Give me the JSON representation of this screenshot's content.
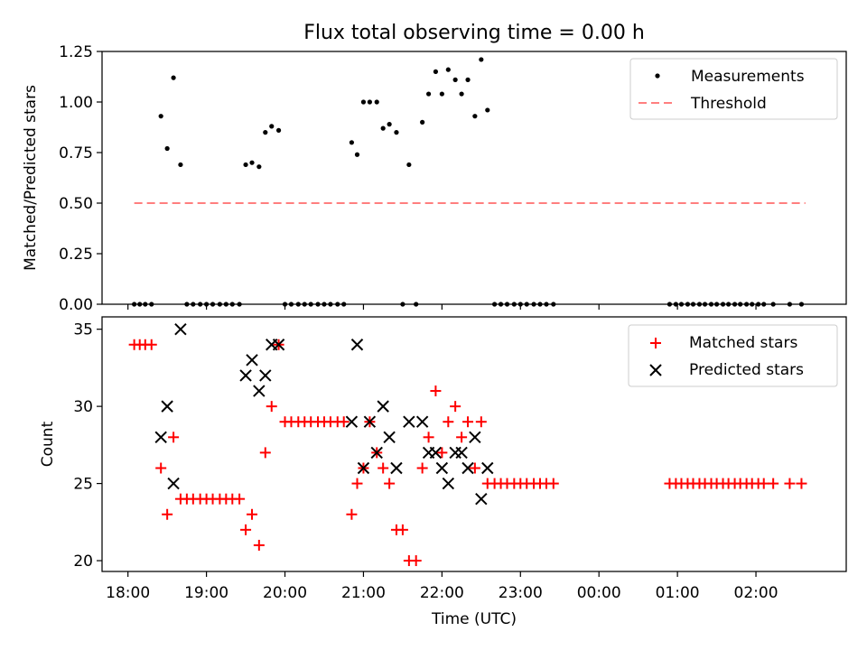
{
  "figure": {
    "title": "Flux total observing time = 0.00 h"
  },
  "colors": {
    "measurement": "#000000",
    "threshold": "#ff7f7f",
    "matched": "#ff0000",
    "predicted": "#000000"
  },
  "chart_data": [
    {
      "type": "scatter",
      "ylabel": "Matched/Predicted stars",
      "xlabel": "",
      "ylim": [
        0,
        1.25
      ],
      "y_ticks": [
        "0.00",
        "0.25",
        "0.50",
        "0.75",
        "1.00",
        "1.25"
      ],
      "x_ticks_visible": false,
      "x_unit": "hours after 18:00 UTC",
      "grid": false,
      "legend": {
        "position": "top-right",
        "entries": [
          "Measurements",
          "Threshold"
        ]
      },
      "threshold": {
        "name": "Threshold",
        "value": 0.5,
        "x_range": [
          0.08,
          8.63
        ]
      },
      "series": [
        {
          "name": "Measurements",
          "marker": "dot",
          "points": [
            [
              0.08,
              0
            ],
            [
              0.15,
              0
            ],
            [
              0.22,
              0
            ],
            [
              0.3,
              0
            ],
            [
              0.42,
              0.93
            ],
            [
              0.5,
              0.77
            ],
            [
              0.58,
              1.12
            ],
            [
              0.67,
              0.69
            ],
            [
              0.75,
              0
            ],
            [
              0.83,
              0
            ],
            [
              0.92,
              0
            ],
            [
              1.0,
              0
            ],
            [
              1.08,
              0
            ],
            [
              1.17,
              0
            ],
            [
              1.25,
              0
            ],
            [
              1.33,
              0
            ],
            [
              1.42,
              0
            ],
            [
              1.5,
              0.69
            ],
            [
              1.58,
              0.7
            ],
            [
              1.67,
              0.68
            ],
            [
              1.75,
              0.85
            ],
            [
              1.83,
              0.88
            ],
            [
              1.92,
              0.86
            ],
            [
              2.0,
              0
            ],
            [
              2.08,
              0
            ],
            [
              2.17,
              0
            ],
            [
              2.25,
              0
            ],
            [
              2.33,
              0
            ],
            [
              2.42,
              0
            ],
            [
              2.5,
              0
            ],
            [
              2.58,
              0
            ],
            [
              2.67,
              0
            ],
            [
              2.75,
              0
            ],
            [
              2.85,
              0.8
            ],
            [
              2.92,
              0.74
            ],
            [
              3.0,
              1.0
            ],
            [
              3.08,
              1.0
            ],
            [
              3.17,
              1.0
            ],
            [
              3.25,
              0.87
            ],
            [
              3.33,
              0.89
            ],
            [
              3.42,
              0.85
            ],
            [
              3.5,
              0
            ],
            [
              3.58,
              0.69
            ],
            [
              3.67,
              0
            ],
            [
              3.75,
              0.9
            ],
            [
              3.83,
              1.04
            ],
            [
              3.92,
              1.15
            ],
            [
              4.0,
              1.04
            ],
            [
              4.08,
              1.16
            ],
            [
              4.17,
              1.11
            ],
            [
              4.25,
              1.04
            ],
            [
              4.33,
              1.11
            ],
            [
              4.42,
              0.93
            ],
            [
              4.5,
              1.21
            ],
            [
              4.58,
              0.96
            ],
            [
              4.67,
              0
            ],
            [
              4.75,
              0
            ],
            [
              4.83,
              0
            ],
            [
              4.92,
              0
            ],
            [
              5.0,
              0
            ],
            [
              5.08,
              0
            ],
            [
              5.17,
              0
            ],
            [
              5.25,
              0
            ],
            [
              5.33,
              0
            ],
            [
              5.42,
              0
            ],
            [
              6.9,
              0
            ],
            [
              6.98,
              0
            ],
            [
              7.05,
              0
            ],
            [
              7.13,
              0
            ],
            [
              7.2,
              0
            ],
            [
              7.28,
              0
            ],
            [
              7.35,
              0
            ],
            [
              7.43,
              0
            ],
            [
              7.5,
              0
            ],
            [
              7.58,
              0
            ],
            [
              7.65,
              0
            ],
            [
              7.73,
              0
            ],
            [
              7.8,
              0
            ],
            [
              7.88,
              0
            ],
            [
              7.95,
              0
            ],
            [
              8.03,
              0
            ],
            [
              8.1,
              0
            ],
            [
              8.22,
              0
            ],
            [
              8.43,
              0
            ],
            [
              8.58,
              0
            ]
          ]
        }
      ]
    },
    {
      "type": "scatter",
      "ylabel": "Count",
      "xlabel": "Time (UTC)",
      "ylim": [
        19.3,
        35.8
      ],
      "y_ticks": [
        20,
        25,
        30,
        35
      ],
      "x_ticks": [
        "18:00",
        "19:00",
        "20:00",
        "21:00",
        "22:00",
        "23:00",
        "00:00",
        "01:00",
        "02:00"
      ],
      "x_tick_positions": [
        0,
        1,
        2,
        3,
        4,
        5,
        6,
        7,
        8
      ],
      "x_unit": "hours after 18:00 UTC",
      "xlim": [
        -0.33,
        9.15
      ],
      "grid": false,
      "legend": {
        "position": "top-right",
        "entries": [
          "Matched stars",
          "Predicted stars"
        ]
      },
      "series": [
        {
          "name": "Matched stars",
          "marker": "plus",
          "points": [
            [
              0.08,
              34
            ],
            [
              0.15,
              34
            ],
            [
              0.22,
              34
            ],
            [
              0.3,
              34
            ],
            [
              0.42,
              26
            ],
            [
              0.5,
              23
            ],
            [
              0.58,
              28
            ],
            [
              0.67,
              24
            ],
            [
              0.75,
              24
            ],
            [
              0.83,
              24
            ],
            [
              0.92,
              24
            ],
            [
              1.0,
              24
            ],
            [
              1.08,
              24
            ],
            [
              1.17,
              24
            ],
            [
              1.25,
              24
            ],
            [
              1.33,
              24
            ],
            [
              1.42,
              24
            ],
            [
              1.5,
              22
            ],
            [
              1.58,
              23
            ],
            [
              1.67,
              21
            ],
            [
              1.75,
              27
            ],
            [
              1.83,
              30
            ],
            [
              1.92,
              34
            ],
            [
              2.0,
              29
            ],
            [
              2.08,
              29
            ],
            [
              2.17,
              29
            ],
            [
              2.25,
              29
            ],
            [
              2.33,
              29
            ],
            [
              2.42,
              29
            ],
            [
              2.5,
              29
            ],
            [
              2.58,
              29
            ],
            [
              2.67,
              29
            ],
            [
              2.75,
              29
            ],
            [
              2.85,
              23
            ],
            [
              2.92,
              25
            ],
            [
              3.0,
              26
            ],
            [
              3.08,
              29
            ],
            [
              3.17,
              27
            ],
            [
              3.25,
              26
            ],
            [
              3.33,
              25
            ],
            [
              3.42,
              22
            ],
            [
              3.5,
              22
            ],
            [
              3.58,
              20
            ],
            [
              3.67,
              20
            ],
            [
              3.75,
              26
            ],
            [
              3.83,
              28
            ],
            [
              3.92,
              31
            ],
            [
              4.0,
              27
            ],
            [
              4.08,
              29
            ],
            [
              4.17,
              30
            ],
            [
              4.25,
              28
            ],
            [
              4.33,
              29
            ],
            [
              4.42,
              26
            ],
            [
              4.5,
              29
            ],
            [
              4.58,
              25
            ],
            [
              4.67,
              25
            ],
            [
              4.75,
              25
            ],
            [
              4.83,
              25
            ],
            [
              4.92,
              25
            ],
            [
              5.0,
              25
            ],
            [
              5.08,
              25
            ],
            [
              5.17,
              25
            ],
            [
              5.25,
              25
            ],
            [
              5.33,
              25
            ],
            [
              5.42,
              25
            ],
            [
              6.9,
              25
            ],
            [
              6.98,
              25
            ],
            [
              7.05,
              25
            ],
            [
              7.13,
              25
            ],
            [
              7.2,
              25
            ],
            [
              7.28,
              25
            ],
            [
              7.35,
              25
            ],
            [
              7.43,
              25
            ],
            [
              7.5,
              25
            ],
            [
              7.58,
              25
            ],
            [
              7.65,
              25
            ],
            [
              7.73,
              25
            ],
            [
              7.8,
              25
            ],
            [
              7.88,
              25
            ],
            [
              7.95,
              25
            ],
            [
              8.03,
              25
            ],
            [
              8.1,
              25
            ],
            [
              8.22,
              25
            ],
            [
              8.43,
              25
            ],
            [
              8.58,
              25
            ]
          ]
        },
        {
          "name": "Predicted stars",
          "marker": "x",
          "points": [
            [
              0.42,
              28
            ],
            [
              0.5,
              30
            ],
            [
              0.58,
              25
            ],
            [
              0.67,
              35
            ],
            [
              1.5,
              32
            ],
            [
              1.58,
              33
            ],
            [
              1.67,
              31
            ],
            [
              1.75,
              32
            ],
            [
              1.83,
              34
            ],
            [
              1.92,
              34
            ],
            [
              2.85,
              29
            ],
            [
              2.92,
              34
            ],
            [
              3.0,
              26
            ],
            [
              3.08,
              29
            ],
            [
              3.17,
              27
            ],
            [
              3.25,
              30
            ],
            [
              3.33,
              28
            ],
            [
              3.42,
              26
            ],
            [
              3.58,
              29
            ],
            [
              3.75,
              29
            ],
            [
              3.83,
              27
            ],
            [
              3.92,
              27
            ],
            [
              4.0,
              26
            ],
            [
              4.08,
              25
            ],
            [
              4.17,
              27
            ],
            [
              4.25,
              27
            ],
            [
              4.33,
              26
            ],
            [
              4.42,
              28
            ],
            [
              4.5,
              24
            ],
            [
              4.58,
              26
            ]
          ]
        }
      ]
    }
  ]
}
